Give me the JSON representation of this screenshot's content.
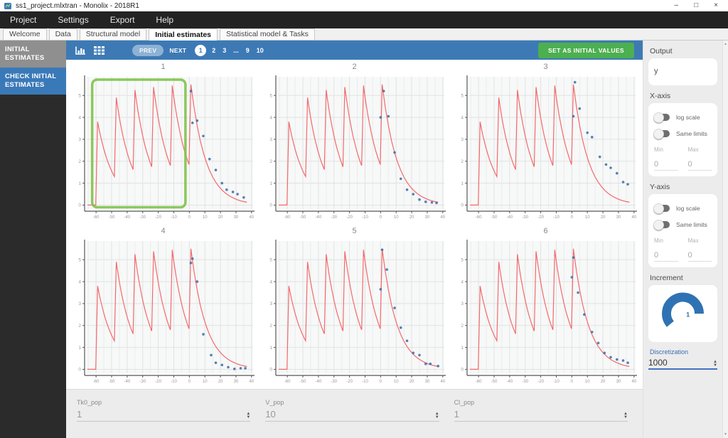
{
  "window": {
    "title": "ss1_project.mlxtran - Monolix - 2018R1",
    "controls": {
      "minimize": "–",
      "maximize": "□",
      "close": "×"
    }
  },
  "menu": {
    "items": [
      "Project",
      "Settings",
      "Export",
      "Help"
    ]
  },
  "tabs": {
    "items": [
      {
        "label": "Welcome"
      },
      {
        "label": "Data"
      },
      {
        "label": "Structural model"
      },
      {
        "label": "Initial estimates"
      },
      {
        "label": "Statistical model & Tasks"
      }
    ],
    "active": "Initial estimates"
  },
  "sidebar": {
    "items": [
      {
        "label": "INITIAL ESTIMATES"
      },
      {
        "label": "CHECK INITIAL ESTIMATES"
      }
    ]
  },
  "toolbar": {
    "prev_label": "PREV",
    "next_label": "NEXT",
    "pages": [
      "1",
      "2",
      "3",
      "...",
      "9",
      "10"
    ],
    "active_page": "1",
    "set_button_label": "SET AS INITIAL VALUES"
  },
  "right_panel": {
    "output": {
      "label": "Output",
      "value": "y"
    },
    "x_axis": {
      "label": "X-axis",
      "log_scale_label": "log scale",
      "same_limits_label": "Same limits",
      "min_label": "Min",
      "max_label": "Max",
      "min": "0",
      "max": "0"
    },
    "y_axis": {
      "label": "Y-axis",
      "log_scale_label": "log scale",
      "same_limits_label": "Same limits",
      "min_label": "Min",
      "max_label": "Max",
      "min": "0",
      "max": "0"
    },
    "increment": {
      "label": "Increment",
      "value": "1"
    },
    "discretization": {
      "label": "Discretization",
      "value": "1000"
    }
  },
  "bottom_bar": {
    "params": [
      {
        "name": "Tk0_pop",
        "value": "1"
      },
      {
        "name": "V_pop",
        "value": "10"
      },
      {
        "name": "Cl_pop",
        "value": "1"
      }
    ]
  },
  "chart_data": {
    "type": "line",
    "xlim": [
      -66,
      41
    ],
    "ylim": [
      -0.18,
      5.85
    ],
    "x_ticks": [
      -60,
      -50,
      -40,
      -30,
      -20,
      -10,
      0,
      10,
      20,
      30,
      40
    ],
    "y_ticks": [
      0,
      1,
      2,
      3,
      4,
      5
    ],
    "grid_minor_x_step": 5,
    "curve_color": "#f2696b",
    "dot_color": "#3d6fa8",
    "curve_keypoints": [
      [
        -65.5,
        0
      ],
      [
        -60.2,
        0
      ],
      [
        -59,
        3.8
      ],
      [
        -48.2,
        1.3
      ],
      [
        -47,
        4.9
      ],
      [
        -36.2,
        1.62
      ],
      [
        -35,
        5.25
      ],
      [
        -24.2,
        1.75
      ],
      [
        -23,
        5.38
      ],
      [
        -12.2,
        1.8
      ],
      [
        -11,
        5.45
      ],
      [
        -0.2,
        1.85
      ],
      [
        1,
        5.5
      ],
      [
        37,
        0.13
      ]
    ],
    "subplots": [
      {
        "title": "1",
        "dots": [
          [
            1,
            5.2
          ],
          [
            2,
            3.75
          ],
          [
            5,
            3.85
          ],
          [
            9,
            3.15
          ],
          [
            13,
            2.1
          ],
          [
            17,
            1.6
          ],
          [
            21,
            1.0
          ],
          [
            24,
            0.7
          ],
          [
            28,
            0.6
          ],
          [
            31,
            0.5
          ],
          [
            35,
            0.35
          ]
        ],
        "highlight": {
          "x0": -62.5,
          "x1": -2.5,
          "y0": -0.1,
          "y1": 5.72,
          "color": "#7ec24a"
        }
      },
      {
        "title": "2",
        "dots": [
          [
            0,
            4.0
          ],
          [
            2,
            5.2
          ],
          [
            5,
            4.05
          ],
          [
            9,
            2.4
          ],
          [
            13,
            1.2
          ],
          [
            17,
            0.7
          ],
          [
            21,
            0.5
          ],
          [
            25,
            0.25
          ],
          [
            29,
            0.15
          ],
          [
            33,
            0.12
          ],
          [
            36,
            0.1
          ]
        ]
      },
      {
        "title": "3",
        "dots": [
          [
            1,
            4.05
          ],
          [
            2,
            5.6
          ],
          [
            5,
            4.4
          ],
          [
            10,
            3.3
          ],
          [
            13,
            3.1
          ],
          [
            18,
            2.2
          ],
          [
            22,
            1.85
          ],
          [
            25,
            1.7
          ],
          [
            29,
            1.45
          ],
          [
            33,
            1.05
          ],
          [
            36,
            0.95
          ]
        ]
      },
      {
        "title": "4",
        "dots": [
          [
            1,
            4.85
          ],
          [
            2,
            5.05
          ],
          [
            5,
            4.0
          ],
          [
            9,
            1.6
          ],
          [
            14,
            0.65
          ],
          [
            17,
            0.3
          ],
          [
            21,
            0.2
          ],
          [
            25,
            0.1
          ],
          [
            29,
            0.02
          ],
          [
            33,
            0.05
          ],
          [
            36,
            0.05
          ]
        ]
      },
      {
        "title": "5",
        "dots": [
          [
            0,
            3.65
          ],
          [
            1,
            5.45
          ],
          [
            4,
            4.55
          ],
          [
            9,
            2.8
          ],
          [
            13,
            1.9
          ],
          [
            17,
            1.3
          ],
          [
            21,
            0.75
          ],
          [
            25,
            0.65
          ],
          [
            29,
            0.25
          ],
          [
            32,
            0.25
          ],
          [
            37,
            0.15
          ]
        ]
      },
      {
        "title": "6",
        "dots": [
          [
            0,
            4.2
          ],
          [
            1,
            5.1
          ],
          [
            4,
            3.5
          ],
          [
            8,
            2.5
          ],
          [
            13,
            1.7
          ],
          [
            17,
            1.2
          ],
          [
            21,
            0.75
          ],
          [
            25,
            0.55
          ],
          [
            29,
            0.45
          ],
          [
            33,
            0.4
          ],
          [
            36,
            0.3
          ]
        ]
      }
    ]
  }
}
